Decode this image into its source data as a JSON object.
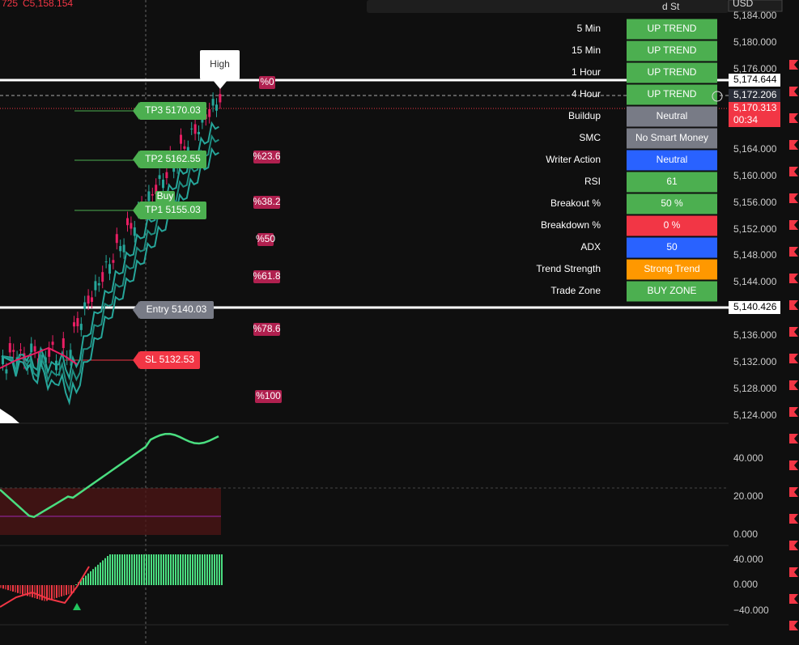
{
  "header": {
    "ohlc": "725",
    "close": "C5,158.154",
    "toolbar_title": "d St",
    "currency": "USD"
  },
  "dashboard": [
    {
      "label": "5 Min",
      "status": "UP TREND",
      "color": "#4caf50"
    },
    {
      "label": "15 Min",
      "status": "UP TREND",
      "color": "#4caf50"
    },
    {
      "label": "1 Hour",
      "status": "UP TREND",
      "color": "#4caf50"
    },
    {
      "label": "4 Hour",
      "status": "UP TREND",
      "color": "#4caf50"
    },
    {
      "label": "Buildup",
      "status": "Neutral",
      "color": "#787b86"
    },
    {
      "label": "SMC",
      "status": "No Smart Money",
      "color": "#787b86"
    },
    {
      "label": "Writer Action",
      "status": "Neutral",
      "color": "#2962ff"
    },
    {
      "label": "RSI",
      "status": "61",
      "color": "#4caf50"
    },
    {
      "label": "Breakout %",
      "status": "50 %",
      "color": "#4caf50"
    },
    {
      "label": "Breakdown %",
      "status": "0 %",
      "color": "#f23645"
    },
    {
      "label": "ADX",
      "status": "50",
      "color": "#2962ff"
    },
    {
      "label": "Trend Strength",
      "status": "Strong Trend",
      "color": "#ff9800"
    },
    {
      "label": "Trade Zone",
      "status": "BUY ZONE",
      "color": "#4caf50"
    }
  ],
  "price_axis": [
    "5,184.000",
    "5,180.000",
    "5,176.000",
    "5,164.000",
    "5,160.000",
    "5,156.000",
    "5,152.000",
    "5,148.000",
    "5,144.000",
    "5,136.000",
    "5,132.000",
    "5,128.000",
    "5,124.000"
  ],
  "price_tags": [
    {
      "text": "5,174.644",
      "color": "#ffffff"
    },
    {
      "text": "5,172.206",
      "color": "#2a2e39"
    },
    {
      "text": "5,170.313",
      "color": "#f23645"
    },
    {
      "text": "5,140.426",
      "color": "#ffffff"
    }
  ],
  "countdown": "00:34",
  "levels": [
    {
      "text": "High",
      "color": "#ffffff"
    },
    {
      "text": "TP3 5170.03",
      "color": "#4caf50"
    },
    {
      "text": "TP2 5162.55",
      "color": "#4caf50"
    },
    {
      "text": "TP1 5155.03",
      "color": "#4caf50"
    },
    {
      "text": "Buy",
      "color": "#4caf50"
    },
    {
      "text": "Entry 5140.03",
      "color": "#787b86"
    },
    {
      "text": "SL 5132.53",
      "color": "#f23645"
    }
  ],
  "fib_labels": [
    "%0",
    "%23.6",
    "%38.2",
    "%50",
    "%61.8",
    "%78.6",
    "%100"
  ],
  "oscillator_1_axis": [
    "40.000",
    "20.000",
    "0.000"
  ],
  "oscillator_2_axis": [
    "40.000",
    "0.000",
    "−40.000"
  ]
}
